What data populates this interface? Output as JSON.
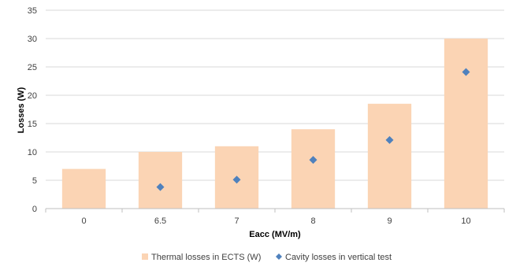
{
  "chart_data": {
    "type": "bar",
    "title": "",
    "xlabel": "Eacc (MV/m)",
    "ylabel": "Losses (W)",
    "categories": [
      "0",
      "6.5",
      "7",
      "8",
      "9",
      "10"
    ],
    "ylim": [
      0,
      35
    ],
    "yticks": [
      0,
      5,
      10,
      15,
      20,
      25,
      30,
      35
    ],
    "grid": true,
    "legend_position": "bottom",
    "series": [
      {
        "name": "Thermal losses in ECTS (W)",
        "type": "bar",
        "color": "#FBD4B4",
        "values": [
          7,
          10,
          11,
          14,
          18.5,
          30
        ]
      },
      {
        "name": "Cavity losses in vertical test",
        "type": "scatter",
        "marker": "diamond",
        "color": "#4F81BD",
        "values": [
          null,
          3.8,
          5.1,
          8.6,
          12.1,
          24.1
        ]
      }
    ]
  }
}
